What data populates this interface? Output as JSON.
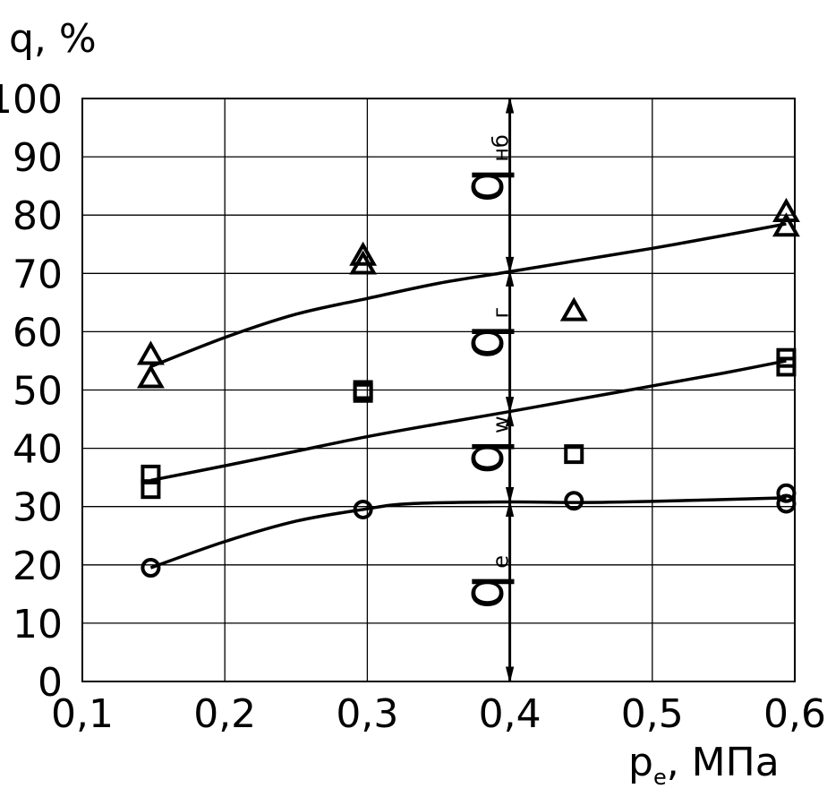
{
  "chart_data": {
    "type": "scatter",
    "xlabel": "p",
    "xlabel_sub": "e",
    "xlabel_unit": ", МПа",
    "ylabel": "q, %",
    "xlim": [
      0.1,
      0.6
    ],
    "ylim": [
      0,
      100
    ],
    "x_ticks": [
      "0,1",
      "0,2",
      "0,3",
      "0,4",
      "0,5",
      "0,6"
    ],
    "y_ticks": [
      "0",
      "10",
      "20",
      "30",
      "40",
      "50",
      "60",
      "70",
      "80",
      "90",
      "100"
    ],
    "grid": true,
    "series": [
      {
        "marker": "triangle",
        "points": [
          [
            0.148,
            56
          ],
          [
            0.148,
            52
          ],
          [
            0.297,
            73
          ],
          [
            0.297,
            71.5
          ],
          [
            0.445,
            63.5
          ],
          [
            0.594,
            80.5
          ],
          [
            0.594,
            78
          ]
        ],
        "curve": [
          [
            0.148,
            54
          ],
          [
            0.2,
            59
          ],
          [
            0.25,
            63
          ],
          [
            0.3,
            65.7
          ],
          [
            0.35,
            68.3
          ],
          [
            0.4,
            70.3
          ],
          [
            0.45,
            72.3
          ],
          [
            0.5,
            74.3
          ],
          [
            0.55,
            76.5
          ],
          [
            0.594,
            78.5
          ]
        ]
      },
      {
        "marker": "square",
        "points": [
          [
            0.148,
            35.5
          ],
          [
            0.148,
            33
          ],
          [
            0.297,
            50
          ],
          [
            0.297,
            49.5
          ],
          [
            0.445,
            39
          ],
          [
            0.594,
            55.5
          ],
          [
            0.594,
            54
          ]
        ],
        "curve": [
          [
            0.148,
            34.5
          ],
          [
            0.2,
            37
          ],
          [
            0.25,
            39.5
          ],
          [
            0.3,
            42
          ],
          [
            0.35,
            44.2
          ],
          [
            0.4,
            46.3
          ],
          [
            0.45,
            48.5
          ],
          [
            0.5,
            50.7
          ],
          [
            0.55,
            52.9
          ],
          [
            0.594,
            55
          ]
        ]
      },
      {
        "marker": "circle",
        "points": [
          [
            0.148,
            19.5
          ],
          [
            0.297,
            29.5
          ],
          [
            0.445,
            31
          ],
          [
            0.594,
            32.3
          ],
          [
            0.594,
            30.5
          ]
        ],
        "curve": [
          [
            0.148,
            19.5
          ],
          [
            0.2,
            24
          ],
          [
            0.25,
            27.5
          ],
          [
            0.297,
            29.5
          ],
          [
            0.33,
            30.5
          ],
          [
            0.4,
            30.8
          ],
          [
            0.45,
            30.7
          ],
          [
            0.5,
            30.9
          ],
          [
            0.594,
            31.5
          ]
        ]
      }
    ],
    "divider": {
      "x": 0.4,
      "breaks": [
        0,
        30.8,
        46.3,
        70.3,
        100
      ],
      "labels": [
        {
          "text": "q",
          "sub": "e"
        },
        {
          "text": "q",
          "sub": "w"
        },
        {
          "text": "q",
          "sub": "г"
        },
        {
          "text": "q",
          "sub": "нб"
        }
      ]
    }
  }
}
